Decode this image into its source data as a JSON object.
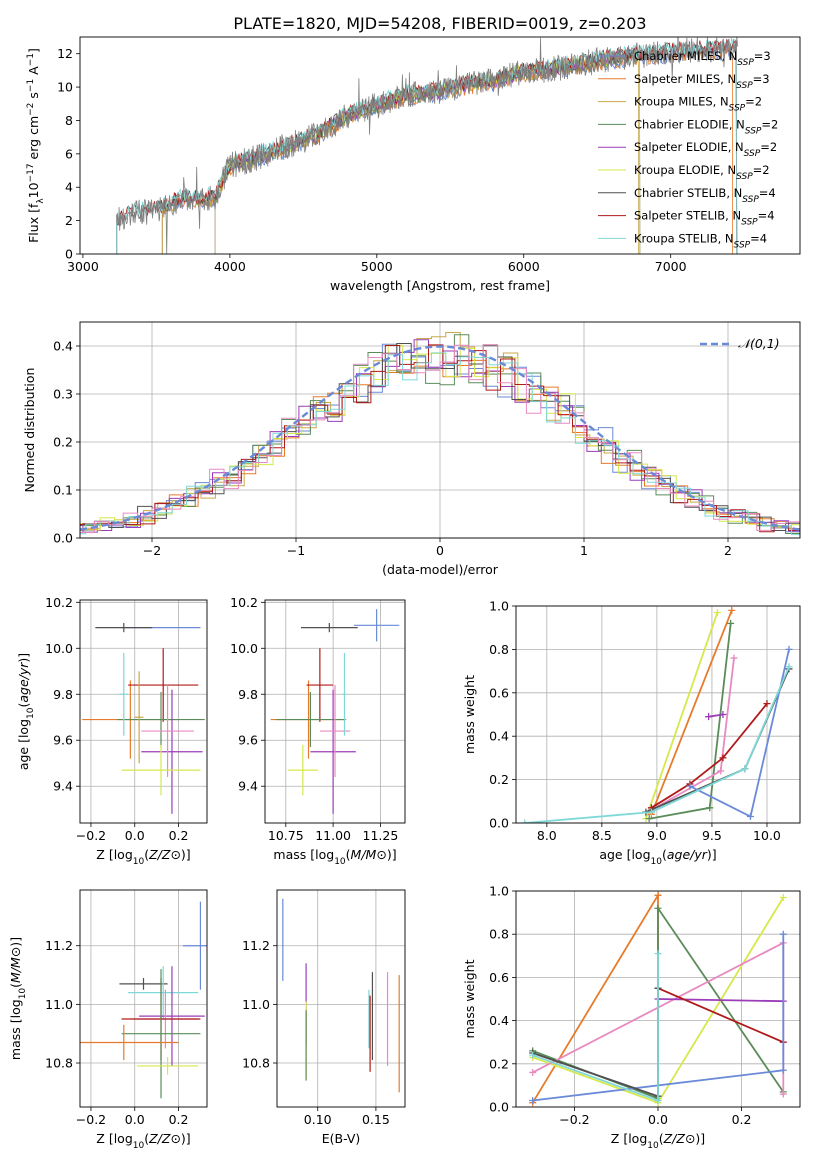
{
  "figure": {
    "title": "PLATE=1820, MJD=54208, FIBERID=0019, z=0.203"
  },
  "chart_data": [
    {
      "id": "spectrum",
      "type": "line",
      "xlabel": "wavelength [Angstrom, rest frame]",
      "ylabel": "Flux [f_λ10^-17 erg cm^-2 s^-1 A^-1]",
      "xlim": [
        2980,
        7880
      ],
      "ylim": [
        0,
        13
      ],
      "xticks": [
        3000,
        4000,
        5000,
        6000,
        7000
      ],
      "yticks": [
        0,
        2,
        4,
        6,
        8,
        10,
        12
      ],
      "grid": false,
      "legend_position": "top-right",
      "data_color": "#808080",
      "data_anchors": [
        [
          3230,
          1.9
        ],
        [
          3300,
          2.4
        ],
        [
          3400,
          2.5
        ],
        [
          3500,
          2.6
        ],
        [
          3600,
          3.0
        ],
        [
          3700,
          3.4
        ],
        [
          3800,
          3.3
        ],
        [
          3900,
          3.4
        ],
        [
          4000,
          5.3
        ],
        [
          4200,
          5.8
        ],
        [
          4400,
          6.5
        ],
        [
          4600,
          7.2
        ],
        [
          4800,
          8.3
        ],
        [
          5000,
          8.9
        ],
        [
          5200,
          9.5
        ],
        [
          5400,
          9.7
        ],
        [
          5600,
          10.1
        ],
        [
          5800,
          10.4
        ],
        [
          6000,
          10.9
        ],
        [
          6200,
          11.1
        ],
        [
          6400,
          11.4
        ],
        [
          6600,
          11.7
        ],
        [
          6800,
          11.9
        ],
        [
          7000,
          12.1
        ],
        [
          7200,
          12.2
        ],
        [
          7400,
          12.3
        ]
      ],
      "series": [
        {
          "name": "Chabrier MILES, N_SSP=3",
          "color": "#6a8ad8",
          "start": 3540,
          "end": 7450
        },
        {
          "name": "Salpeter MILES, N_SSP=3",
          "color": "#e87b2b",
          "start": 3540,
          "end": 7420
        },
        {
          "name": "Kroupa MILES, N_SSP=2",
          "color": "#c9a84a",
          "start": 3540,
          "end": 6780
        },
        {
          "name": "Chabrier ELODIE, N_SSP=2",
          "color": "#5a8c5a",
          "start": 3900,
          "end": 6790
        },
        {
          "name": "Salpeter ELODIE, N_SSP=2",
          "color": "#9b3db8",
          "start": 3900,
          "end": 6790
        },
        {
          "name": "Kroupa ELODIE, N_SSP=2",
          "color": "#d6e84a",
          "start": 3900,
          "end": 6790
        },
        {
          "name": "Chabrier STELIB, N_SSP=4",
          "color": "#505050",
          "start": 3230,
          "end": 7450
        },
        {
          "name": "Salpeter STELIB, N_SSP=4",
          "color": "#b01a1a",
          "start": 3230,
          "end": 7450
        },
        {
          "name": "Kroupa STELIB, N_SSP=4",
          "color": "#7fd8d8",
          "start": 3230,
          "end": 7450
        }
      ]
    },
    {
      "id": "residuals",
      "type": "histogram",
      "xlabel": "(data-model)/error",
      "ylabel": "Normed distribution",
      "xlim": [
        -2.5,
        2.5
      ],
      "ylim": [
        0,
        0.45
      ],
      "xticks": [
        -2,
        -1,
        0,
        1,
        2
      ],
      "yticks": [
        0.0,
        0.1,
        0.2,
        0.3,
        0.4
      ],
      "grid": true,
      "legend_position": "top-right",
      "reference_curve": {
        "name": "𝒩(0,1)",
        "color": "#6a8ad8"
      },
      "bin_width": 0.1,
      "series_colors": [
        "#6a8ad8",
        "#e87b2b",
        "#c9a84a",
        "#5a8c5a",
        "#9b3db8",
        "#d6e84a",
        "#505050",
        "#b01a1a",
        "#7fd8d8",
        "#e88ac0"
      ]
    },
    {
      "id": "age_vs_Z",
      "type": "errorbar",
      "xlabel": "Z [log10(Z/Z⊙)]",
      "ylabel": "age  [log10(age/yr)]",
      "xlim": [
        -0.25,
        0.33
      ],
      "ylim": [
        9.24,
        10.21
      ],
      "xticks": [
        -0.2,
        0.0,
        0.2
      ],
      "yticks": [
        9.4,
        9.6,
        9.8,
        10.0,
        10.2
      ],
      "grid": true,
      "points": [
        {
          "x": 0.12,
          "y": 10.09,
          "xerr": 0.18,
          "yerr": 0.0,
          "color": "#6a8ad8"
        },
        {
          "x": -0.05,
          "y": 10.09,
          "xerr": 0.13,
          "yerr": 0.02,
          "color": "#505050"
        },
        {
          "x": -0.02,
          "y": 9.69,
          "xerr": 0.22,
          "yerr": 0.17,
          "color": "#e87b2b"
        },
        {
          "x": 0.13,
          "y": 9.84,
          "xerr": 0.16,
          "yerr": 0.16,
          "color": "#b01a1a"
        },
        {
          "x": 0.12,
          "y": 9.69,
          "xerr": 0.2,
          "yerr": 0.12,
          "color": "#5a8c5a"
        },
        {
          "x": 0.17,
          "y": 9.55,
          "xerr": 0.14,
          "yerr": 0.27,
          "color": "#9b3db8"
        },
        {
          "x": 0.15,
          "y": 9.64,
          "xerr": 0.12,
          "yerr": 0.2,
          "color": "#e88ac0"
        },
        {
          "x": 0.12,
          "y": 9.47,
          "xerr": 0.18,
          "yerr": 0.11,
          "color": "#d6e84a"
        },
        {
          "x": -0.05,
          "y": 9.8,
          "xerr": 0.02,
          "yerr": 0.18,
          "color": "#7fd8d8"
        },
        {
          "x": 0.02,
          "y": 9.7,
          "xerr": 0.02,
          "yerr": 0.2,
          "color": "#c9a84a"
        }
      ]
    },
    {
      "id": "age_vs_mass",
      "type": "errorbar",
      "xlabel": "mass [log10(M/M⊙)]",
      "ylabel": "",
      "xlim": [
        10.64,
        11.38
      ],
      "ylim": [
        9.24,
        10.21
      ],
      "xticks": [
        10.75,
        11.0,
        11.25
      ],
      "yticks": [
        9.4,
        9.6,
        9.8,
        10.0,
        10.2
      ],
      "grid": true,
      "points": [
        {
          "x": 11.23,
          "y": 10.1,
          "xerr": 0.12,
          "yerr": 0.07,
          "color": "#6a8ad8"
        },
        {
          "x": 10.98,
          "y": 10.09,
          "xerr": 0.15,
          "yerr": 0.02,
          "color": "#505050"
        },
        {
          "x": 10.87,
          "y": 9.69,
          "xerr": 0.2,
          "yerr": 0.17,
          "color": "#e87b2b"
        },
        {
          "x": 10.93,
          "y": 9.84,
          "xerr": 0.07,
          "yerr": 0.16,
          "color": "#b01a1a"
        },
        {
          "x": 10.88,
          "y": 9.69,
          "xerr": 0.18,
          "yerr": 0.12,
          "color": "#5a8c5a"
        },
        {
          "x": 11.0,
          "y": 9.55,
          "xerr": 0.12,
          "yerr": 0.27,
          "color": "#9b3db8"
        },
        {
          "x": 11.01,
          "y": 9.64,
          "xerr": 0.08,
          "yerr": 0.2,
          "color": "#e88ac0"
        },
        {
          "x": 10.84,
          "y": 9.47,
          "xerr": 0.08,
          "yerr": 0.11,
          "color": "#d6e84a"
        },
        {
          "x": 11.06,
          "y": 9.8,
          "xerr": 0.01,
          "yerr": 0.18,
          "color": "#7fd8d8"
        }
      ]
    },
    {
      "id": "weight_vs_age",
      "type": "line",
      "xlabel": "age  [log10(age/yr)]",
      "ylabel": "mass weight",
      "xlim": [
        7.72,
        10.3
      ],
      "ylim": [
        0,
        1
      ],
      "xticks": [
        8.0,
        8.5,
        9.0,
        9.5,
        10.0
      ],
      "yticks": [
        0.0,
        0.2,
        0.4,
        0.6,
        0.8,
        1.0
      ],
      "grid": true,
      "series": [
        {
          "color": "#d6e84a",
          "points": [
            [
              8.9,
              0.02
            ],
            [
              9.55,
              0.97
            ]
          ]
        },
        {
          "color": "#e87b2b",
          "points": [
            [
              8.95,
              0.04
            ],
            [
              9.68,
              0.98
            ]
          ]
        },
        {
          "color": "#5a8c5a",
          "points": [
            [
              8.93,
              0.02
            ],
            [
              9.48,
              0.07
            ],
            [
              9.67,
              0.92
            ]
          ]
        },
        {
          "color": "#e88ac0",
          "points": [
            [
              8.95,
              0.06
            ],
            [
              9.58,
              0.24
            ],
            [
              9.7,
              0.76
            ]
          ]
        },
        {
          "color": "#9b3db8",
          "points": [
            [
              9.47,
              0.49
            ],
            [
              9.6,
              0.5
            ]
          ]
        },
        {
          "color": "#b01a1a",
          "points": [
            [
              8.95,
              0.07
            ],
            [
              9.3,
              0.18
            ],
            [
              9.6,
              0.3
            ],
            [
              10.0,
              0.55
            ]
          ]
        },
        {
          "color": "#505050",
          "points": [
            [
              8.9,
              0.05
            ],
            [
              9.8,
              0.25
            ],
            [
              10.2,
              0.71
            ]
          ]
        },
        {
          "color": "#6a8ad8",
          "points": [
            [
              9.3,
              0.17
            ],
            [
              9.85,
              0.03
            ],
            [
              10.2,
              0.8
            ]
          ]
        },
        {
          "color": "#7fd8d8",
          "points": [
            [
              7.8,
              0.0
            ],
            [
              8.95,
              0.05
            ],
            [
              9.8,
              0.25
            ],
            [
              10.2,
              0.72
            ]
          ]
        }
      ]
    },
    {
      "id": "mass_vs_Z",
      "type": "errorbar",
      "xlabel": "Z [log10(Z/Z⊙)]",
      "ylabel": "mass [log10(M/M⊙)]",
      "xlim": [
        -0.25,
        0.33
      ],
      "ylim": [
        10.65,
        11.39
      ],
      "xticks": [
        -0.2,
        0.0,
        0.2
      ],
      "yticks": [
        10.8,
        11.0,
        11.2
      ],
      "grid": true,
      "points": [
        {
          "x": 0.3,
          "y": 11.2,
          "xerr": 0.08,
          "yerr": 0.15,
          "color": "#6a8ad8"
        },
        {
          "x": 0.04,
          "y": 11.07,
          "xerr": 0.11,
          "yerr": 0.02,
          "color": "#505050"
        },
        {
          "x": 0.13,
          "y": 11.04,
          "xerr": 0.16,
          "yerr": 0.09,
          "color": "#7fd8d8"
        },
        {
          "x": 0.17,
          "y": 10.96,
          "xerr": 0.15,
          "yerr": 0.17,
          "color": "#9b3db8"
        },
        {
          "x": 0.14,
          "y": 10.95,
          "xerr": 0.15,
          "yerr": 0.1,
          "color": "#e88ac0"
        },
        {
          "x": 0.12,
          "y": 10.95,
          "xerr": 0.18,
          "yerr": 0.14,
          "color": "#b01a1a"
        },
        {
          "x": 0.12,
          "y": 10.9,
          "xerr": 0.18,
          "yerr": 0.22,
          "color": "#5a8c5a"
        },
        {
          "x": -0.05,
          "y": 10.87,
          "xerr": 0.25,
          "yerr": 0.06,
          "color": "#e87b2b"
        },
        {
          "x": 0.15,
          "y": 10.79,
          "xerr": 0.14,
          "yerr": 0.03,
          "color": "#d6e84a"
        }
      ]
    },
    {
      "id": "mass_vs_EBV",
      "type": "errorbar",
      "xlabel": "E(B-V)",
      "ylabel": "",
      "xlim": [
        0.065,
        0.175
      ],
      "ylim": [
        10.65,
        11.39
      ],
      "xticks": [
        0.1,
        0.15
      ],
      "yticks": [
        10.8,
        11.0,
        11.2
      ],
      "grid": true,
      "points": [
        {
          "x": 0.07,
          "y": 11.22,
          "xerr": 0.0,
          "yerr": 0.14,
          "color": "#6a8ad8"
        },
        {
          "x": 0.09,
          "y": 11.0,
          "xerr": 0.0,
          "yerr": 0.14,
          "color": "#9b3db8"
        },
        {
          "x": 0.09,
          "y": 10.88,
          "xerr": 0.0,
          "yerr": 0.13,
          "color": "#d6e84a"
        },
        {
          "x": 0.09,
          "y": 10.86,
          "xerr": 0.0,
          "yerr": 0.12,
          "color": "#5a8c5a"
        },
        {
          "x": 0.144,
          "y": 10.95,
          "xerr": 0.0,
          "yerr": 0.1,
          "color": "#7fd8d8"
        },
        {
          "x": 0.145,
          "y": 10.9,
          "xerr": 0.0,
          "yerr": 0.13,
          "color": "#b01a1a"
        },
        {
          "x": 0.147,
          "y": 10.96,
          "xerr": 0.0,
          "yerr": 0.15,
          "color": "#505050"
        },
        {
          "x": 0.16,
          "y": 10.95,
          "xerr": 0.0,
          "yerr": 0.16,
          "color": "#e88ac0"
        },
        {
          "x": 0.17,
          "y": 10.9,
          "xerr": 0.0,
          "yerr": 0.2,
          "color": "#e87b2b"
        }
      ]
    },
    {
      "id": "weight_vs_Z",
      "type": "line",
      "xlabel": "Z [log10(Z/Z⊙)]",
      "ylabel": "mass weight",
      "xlim": [
        -0.34,
        0.34
      ],
      "ylim": [
        0,
        1
      ],
      "xticks": [
        -0.2,
        0.0,
        0.2
      ],
      "yticks": [
        0.0,
        0.2,
        0.4,
        0.6,
        0.8,
        1.0
      ],
      "grid": true,
      "series": [
        {
          "color": "#e87b2b",
          "points": [
            [
              -0.3,
              0.02
            ],
            [
              0.0,
              0.98
            ],
            [
              0.0,
              0.04
            ]
          ]
        },
        {
          "color": "#5a8c5a",
          "points": [
            [
              -0.3,
              0.26
            ],
            [
              0.0,
              0.04
            ],
            [
              0.0,
              0.92
            ],
            [
              0.3,
              0.07
            ]
          ]
        },
        {
          "color": "#d6e84a",
          "points": [
            [
              -0.3,
              0.23
            ],
            [
              0.0,
              0.02
            ],
            [
              0.3,
              0.97
            ]
          ]
        },
        {
          "color": "#e88ac0",
          "points": [
            [
              -0.3,
              0.16
            ],
            [
              0.3,
              0.76
            ],
            [
              0.3,
              0.06
            ]
          ]
        },
        {
          "color": "#9b3db8",
          "points": [
            [
              0.0,
              0.5
            ],
            [
              0.3,
              0.49
            ]
          ]
        },
        {
          "color": "#b01a1a",
          "points": [
            [
              0.0,
              0.55
            ],
            [
              0.3,
              0.3
            ]
          ]
        },
        {
          "color": "#6a8ad8",
          "points": [
            [
              -0.3,
              0.03
            ],
            [
              0.3,
              0.17
            ],
            [
              0.3,
              0.8
            ]
          ]
        },
        {
          "color": "#505050",
          "points": [
            [
              -0.3,
              0.25
            ],
            [
              0.0,
              0.05
            ],
            [
              0.0,
              0.55
            ]
          ]
        },
        {
          "color": "#7fd8d8",
          "points": [
            [
              -0.3,
              0.24
            ],
            [
              0.0,
              0.03
            ],
            [
              0.0,
              0.71
            ]
          ]
        }
      ]
    }
  ]
}
